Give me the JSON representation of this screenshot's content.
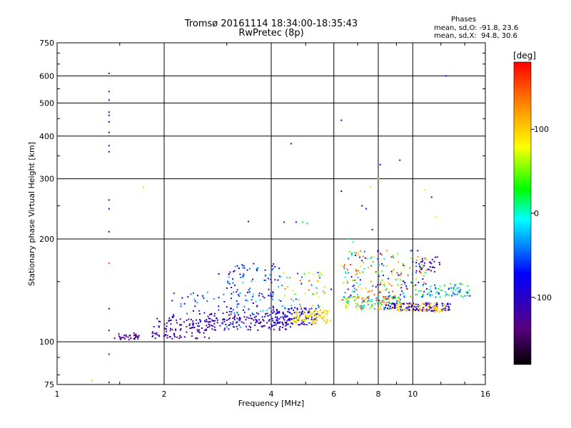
{
  "header": {
    "title_line1": "Tromsø 20161114 18:34:00-18:35:43",
    "title_line2": "RwPretec (8p)"
  },
  "stats": {
    "heading": "Phases",
    "line_o": "mean, sd,O: -91.8, 23.6",
    "line_x": "mean, sd,X:  94.8, 30.6"
  },
  "chart_data": {
    "type": "scatter",
    "xlabel": "Frequency [MHz]",
    "ylabel": "Stationary phase Virtual Height [km]",
    "x_scale": "log",
    "y_scale": "log",
    "xlim": [
      1,
      16
    ],
    "ylim": [
      75,
      750
    ],
    "x_ticks": [
      1,
      2,
      4,
      6,
      8,
      10,
      16
    ],
    "y_ticks": [
      75,
      100,
      200,
      300,
      400,
      500,
      600,
      750
    ],
    "grid": true,
    "colorbar": {
      "label": "[deg]",
      "range": [
        -180,
        180
      ],
      "ticks": [
        100,
        0,
        -100
      ],
      "colormap": [
        "#000000",
        "#5a0080",
        "#0000ff",
        "#00ffff",
        "#00ff00",
        "#ffff00",
        "#ff9900",
        "#ff0000"
      ]
    },
    "point_groups": [
      {
        "x": [
          1.4,
          1.4,
          1.4,
          1.4,
          1.4,
          1.4,
          1.4,
          1.4,
          1.4,
          1.4,
          1.4,
          1.4,
          1.4,
          1.4
        ],
        "y": [
          610,
          540,
          510,
          470,
          460,
          440,
          410,
          375,
          360,
          260,
          245,
          210,
          125,
          108
        ],
        "phase": -100
      },
      {
        "x": [
          1.4
        ],
        "y": [
          170
        ],
        "phase": 150
      },
      {
        "x": [
          1.4,
          1.4
        ],
        "y": [
          92,
          76
        ],
        "phase": -120
      },
      {
        "x": [
          1.25
        ],
        "y": [
          77
        ],
        "phase": 100
      },
      {
        "x": [
          1.75
        ],
        "y": [
          283
        ],
        "phase": 100
      },
      {
        "x": [
          2.85,
          3.45,
          4.35,
          4.55,
          4.7
        ],
        "y": [
          158,
          225,
          224,
          380,
          224
        ],
        "phase": -110
      },
      {
        "x": [
          4.9,
          5.05
        ],
        "y": [
          224,
          222
        ],
        "phase": 30
      },
      {
        "x": [
          6.3,
          6.3,
          7.7,
          8.1,
          9.2,
          11.3,
          7.2,
          7.4
        ],
        "y": [
          445,
          276,
          213,
          330,
          340,
          265,
          250,
          245
        ],
        "phase": -100
      },
      {
        "x": [
          7.6,
          8.0,
          10.8,
          11.6
        ],
        "y": [
          284,
          300,
          278,
          232
        ],
        "phase": 90
      },
      {
        "x": [
          12.4
        ],
        "y": [
          600
        ],
        "phase": -100
      },
      {
        "x": [
          6.6,
          6.8
        ],
        "y": [
          200,
          196
        ],
        "phase": 0
      }
    ],
    "clusters": [
      {
        "x_range": [
          1.45,
          1.7
        ],
        "y_range": [
          101,
          106
        ],
        "phase_range": [
          -150,
          -110
        ],
        "count": 34
      },
      {
        "x_range": [
          1.85,
          2.7
        ],
        "y_range": [
          102,
          118
        ],
        "phase_range": [
          -140,
          -100
        ],
        "count": 110
      },
      {
        "x_range": [
          2.1,
          3.4
        ],
        "y_range": [
          110,
          140
        ],
        "phase_range": [
          -110,
          -20
        ],
        "count": 60
      },
      {
        "x_range": [
          2.6,
          4.6
        ],
        "y_range": [
          108,
          122
        ],
        "phase_range": [
          -130,
          -90
        ],
        "count": 150
      },
      {
        "x_range": [
          3.0,
          4.3
        ],
        "y_range": [
          120,
          170
        ],
        "phase_range": [
          -120,
          -10
        ],
        "count": 120
      },
      {
        "x_range": [
          4.0,
          5.4
        ],
        "y_range": [
          112,
          126
        ],
        "phase_range": [
          -120,
          -60
        ],
        "count": 110
      },
      {
        "x_range": [
          4.6,
          5.9
        ],
        "y_range": [
          113,
          124
        ],
        "phase_range": [
          60,
          130
        ],
        "count": 90
      },
      {
        "x_range": [
          4.3,
          5.9
        ],
        "y_range": [
          125,
          160
        ],
        "phase_range": [
          -80,
          150
        ],
        "count": 50
      },
      {
        "x_range": [
          6.3,
          9.3
        ],
        "y_range": [
          124,
          136
        ],
        "phase_range": [
          -60,
          170
        ],
        "count": 150
      },
      {
        "x_range": [
          8.3,
          12.8
        ],
        "y_range": [
          123,
          130
        ],
        "phase_range": [
          -120,
          -80
        ],
        "count": 110
      },
      {
        "x_range": [
          9.0,
          12.5
        ],
        "y_range": [
          122,
          130
        ],
        "phase_range": [
          80,
          130
        ],
        "count": 60
      },
      {
        "x_range": [
          6.3,
          11.0
        ],
        "y_range": [
          135,
          185
        ],
        "phase_range": [
          -130,
          170
        ],
        "count": 190
      },
      {
        "x_range": [
          10.5,
          14.5
        ],
        "y_range": [
          135,
          148
        ],
        "phase_range": [
          -70,
          40
        ],
        "count": 80
      },
      {
        "x_range": [
          10.0,
          12.0
        ],
        "y_range": [
          160,
          178
        ],
        "phase_range": [
          -130,
          -100
        ],
        "count": 30
      }
    ]
  }
}
